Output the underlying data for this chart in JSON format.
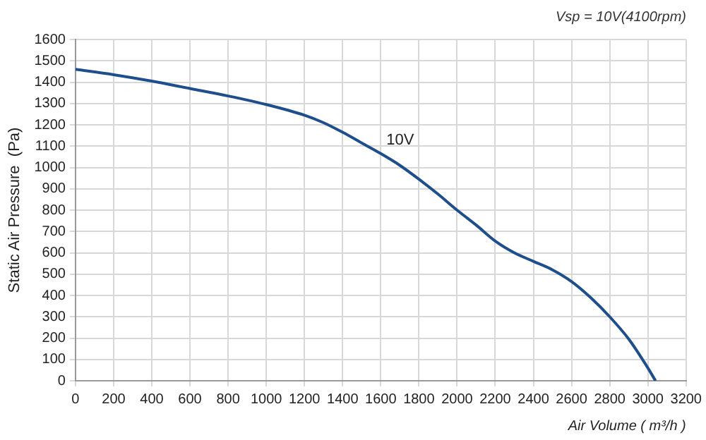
{
  "chart_data": {
    "type": "line",
    "title": "Vsp = 10V(4100rpm)",
    "xlabel": "Air Volume ( m³/h )",
    "ylabel": "Static Air Pressure  (Pa)",
    "x": [
      0,
      200,
      400,
      600,
      800,
      1000,
      1200,
      1300,
      1400,
      1500,
      1600,
      1700,
      1800,
      1900,
      2000,
      2100,
      2200,
      2300,
      2400,
      2500,
      2600,
      2700,
      2800,
      2900,
      3000,
      3040
    ],
    "series": [
      {
        "name": "10V",
        "color": "#1f4e8c",
        "values": [
          1460,
          1435,
          1405,
          1370,
          1335,
          1295,
          1245,
          1210,
          1165,
          1115,
          1065,
          1010,
          945,
          875,
          800,
          730,
          655,
          600,
          560,
          520,
          465,
          390,
          300,
          195,
          60,
          0
        ]
      }
    ],
    "xlim": [
      0,
      3200
    ],
    "xticks": [
      0,
      200,
      400,
      600,
      800,
      1000,
      1200,
      1400,
      1600,
      1800,
      2000,
      2200,
      2400,
      2600,
      2800,
      3000,
      3200
    ],
    "ylim": [
      0,
      1600
    ],
    "yticks": [
      0,
      100,
      200,
      300,
      400,
      500,
      600,
      700,
      800,
      900,
      1000,
      1100,
      1200,
      1300,
      1400,
      1500,
      1600
    ],
    "grid": true,
    "legend": false,
    "marker": "none",
    "line_style": "solid"
  }
}
